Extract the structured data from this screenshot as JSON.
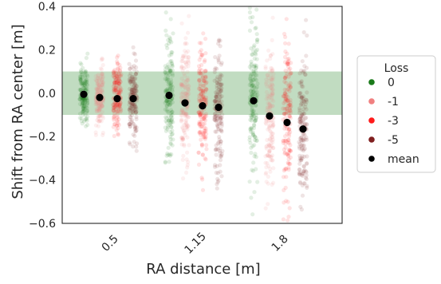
{
  "chart_data": {
    "type": "scatter",
    "xlabel": "RA distance [m]",
    "ylabel": "Shift from RA center [m]",
    "ylim": [
      -0.6,
      0.4
    ],
    "yticks": [
      -0.6,
      -0.4,
      -0.2,
      0.0,
      0.2,
      0.4
    ],
    "ytick_labels": [
      "−0.6",
      "−0.4",
      "−0.2",
      "0.0",
      "0.2",
      "0.4"
    ],
    "categories": [
      "0.5",
      "1.15",
      "1.8"
    ],
    "tolerance_band": {
      "ymin": -0.1,
      "ymax": 0.1,
      "color": "#4c9a4c"
    },
    "legend": {
      "title": "Loss",
      "placement": "right",
      "entries": [
        {
          "label": "0",
          "color": "#1a7a1a"
        },
        {
          "label": "-1",
          "color": "#f08080"
        },
        {
          "label": "-3",
          "color": "#ff1a1a"
        },
        {
          "label": "-5",
          "color": "#7f1f1f"
        },
        {
          "label": "mean",
          "color": "#000000"
        }
      ]
    },
    "series": [
      {
        "name": "0",
        "color": "#1a7a1a",
        "spread": [
          {
            "category": "0.5",
            "min": -0.17,
            "max": 0.22
          },
          {
            "category": "1.15",
            "min": -0.33,
            "max": 0.4
          },
          {
            "category": "1.8",
            "min": -0.56,
            "max": 0.4
          }
        ]
      },
      {
        "name": "-1",
        "color": "#f08080",
        "spread": [
          {
            "category": "0.5",
            "min": -0.2,
            "max": 0.19
          },
          {
            "category": "1.15",
            "min": -0.42,
            "max": 0.37
          },
          {
            "category": "1.8",
            "min": -0.55,
            "max": 0.35
          }
        ]
      },
      {
        "name": "-3",
        "color": "#ff1a1a",
        "spread": [
          {
            "category": "0.5",
            "min": -0.2,
            "max": 0.29
          },
          {
            "category": "1.15",
            "min": -0.45,
            "max": 0.32
          },
          {
            "category": "1.8",
            "min": -0.6,
            "max": 0.4
          }
        ]
      },
      {
        "name": "-5",
        "color": "#7f1f1f",
        "spread": [
          {
            "category": "0.5",
            "min": -0.28,
            "max": 0.23
          },
          {
            "category": "1.15",
            "min": -0.52,
            "max": 0.26
          },
          {
            "category": "1.8",
            "min": -0.6,
            "max": 0.35
          }
        ]
      }
    ],
    "mean": [
      {
        "category": "0.5",
        "loss": "0",
        "value": -0.005
      },
      {
        "category": "0.5",
        "loss": "-1",
        "value": -0.02
      },
      {
        "category": "0.5",
        "loss": "-3",
        "value": -0.025
      },
      {
        "category": "0.5",
        "loss": "-5",
        "value": -0.025
      },
      {
        "category": "1.15",
        "loss": "0",
        "value": -0.01
      },
      {
        "category": "1.15",
        "loss": "-1",
        "value": -0.045
      },
      {
        "category": "1.15",
        "loss": "-3",
        "value": -0.058
      },
      {
        "category": "1.15",
        "loss": "-5",
        "value": -0.065
      },
      {
        "category": "1.8",
        "loss": "0",
        "value": -0.035
      },
      {
        "category": "1.8",
        "loss": "-1",
        "value": -0.105
      },
      {
        "category": "1.8",
        "loss": "-3",
        "value": -0.135
      },
      {
        "category": "1.8",
        "loss": "-5",
        "value": -0.165
      }
    ]
  }
}
